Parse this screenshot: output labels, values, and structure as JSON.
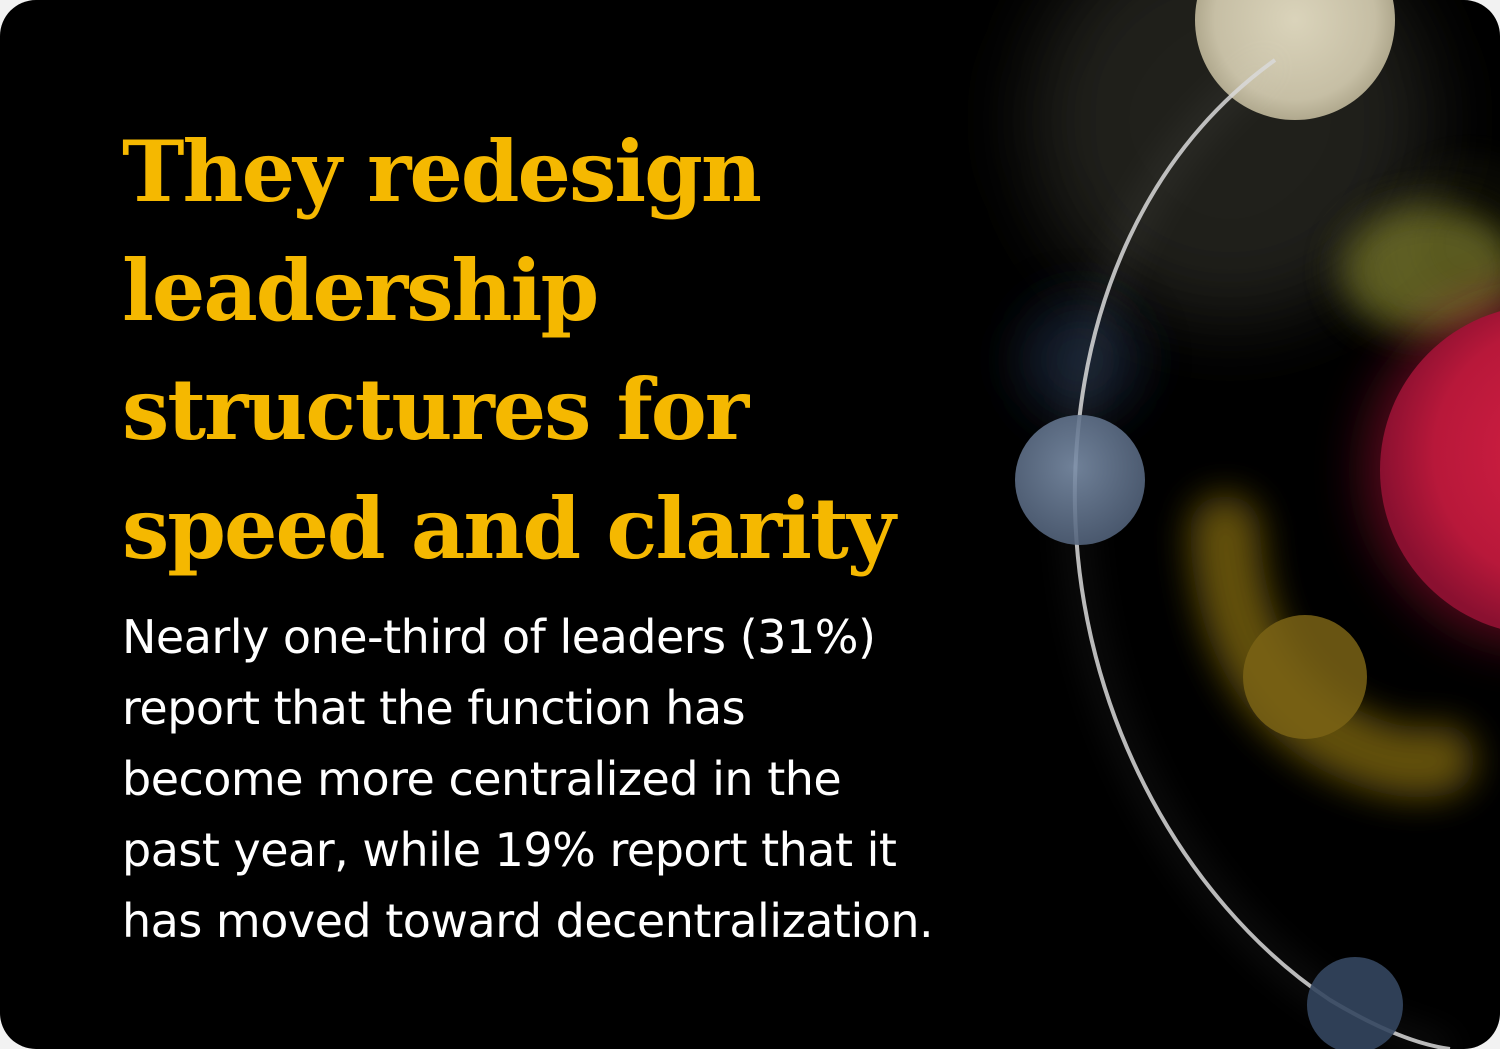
{
  "headline": {
    "lines": [
      "They redesign",
      "leadership",
      "structures for",
      "speed and clarity"
    ],
    "color": "#f5b800"
  },
  "body": {
    "lines": [
      "Nearly one-third of leaders (31%)",
      "report that the function has",
      "become more centralized in the",
      "past year, while 19% report that it",
      "has moved toward decentralization."
    ],
    "color": "#ffffff"
  },
  "decoration": {
    "background": "#000000",
    "orbs": [
      "cream",
      "olive",
      "crimson",
      "slate-blue",
      "amber"
    ]
  }
}
